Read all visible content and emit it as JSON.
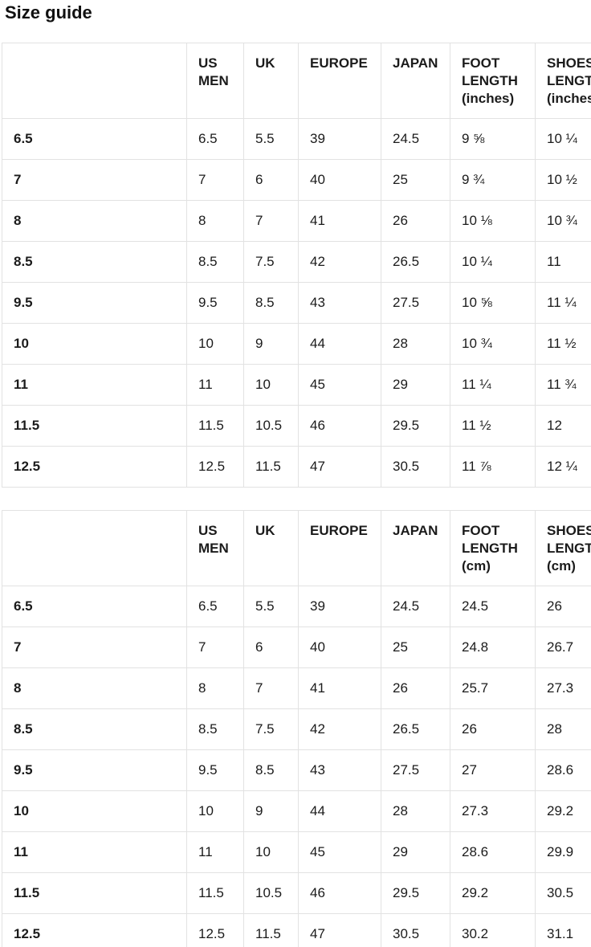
{
  "page": {
    "title": "Size guide"
  },
  "tables": [
    {
      "name": "size-table-inches",
      "columns": [
        "",
        "US MEN",
        "UK",
        "EUROPE",
        "JAPAN",
        "FOOT LENGTH (inches)",
        "SHOES LENGTH (inches)"
      ],
      "rows": [
        [
          "6.5",
          "6.5",
          "5.5",
          "39",
          "24.5",
          "9 ⅝",
          "10 ¼"
        ],
        [
          "7",
          "7",
          "6",
          "40",
          "25",
          "9 ¾",
          "10 ½"
        ],
        [
          "8",
          "8",
          "7",
          "41",
          "26",
          "10 ⅛",
          "10 ¾"
        ],
        [
          "8.5",
          "8.5",
          "7.5",
          "42",
          "26.5",
          "10 ¼",
          "11"
        ],
        [
          "9.5",
          "9.5",
          "8.5",
          "43",
          "27.5",
          "10 ⅝",
          "11 ¼"
        ],
        [
          "10",
          "10",
          "9",
          "44",
          "28",
          "10 ¾",
          "11 ½"
        ],
        [
          "11",
          "11",
          "10",
          "45",
          "29",
          "11 ¼",
          "11 ¾"
        ],
        [
          "11.5",
          "11.5",
          "10.5",
          "46",
          "29.5",
          "11 ½",
          "12"
        ],
        [
          "12.5",
          "12.5",
          "11.5",
          "47",
          "30.5",
          "11 ⅞",
          "12 ¼"
        ]
      ]
    },
    {
      "name": "size-table-cm",
      "columns": [
        "",
        "US MEN",
        "UK",
        "EUROPE",
        "JAPAN",
        "FOOT LENGTH (cm)",
        "SHOES LENGTH (cm)"
      ],
      "rows": [
        [
          "6.5",
          "6.5",
          "5.5",
          "39",
          "24.5",
          "24.5",
          "26"
        ],
        [
          "7",
          "7",
          "6",
          "40",
          "25",
          "24.8",
          "26.7"
        ],
        [
          "8",
          "8",
          "7",
          "41",
          "26",
          "25.7",
          "27.3"
        ],
        [
          "8.5",
          "8.5",
          "7.5",
          "42",
          "26.5",
          "26",
          "28"
        ],
        [
          "9.5",
          "9.5",
          "8.5",
          "43",
          "27.5",
          "27",
          "28.6"
        ],
        [
          "10",
          "10",
          "9",
          "44",
          "28",
          "27.3",
          "29.2"
        ],
        [
          "11",
          "11",
          "10",
          "45",
          "29",
          "28.6",
          "29.9"
        ],
        [
          "11.5",
          "11.5",
          "10.5",
          "46",
          "29.5",
          "29.2",
          "30.5"
        ],
        [
          "12.5",
          "12.5",
          "11.5",
          "47",
          "30.5",
          "30.2",
          "31.1"
        ]
      ]
    }
  ]
}
